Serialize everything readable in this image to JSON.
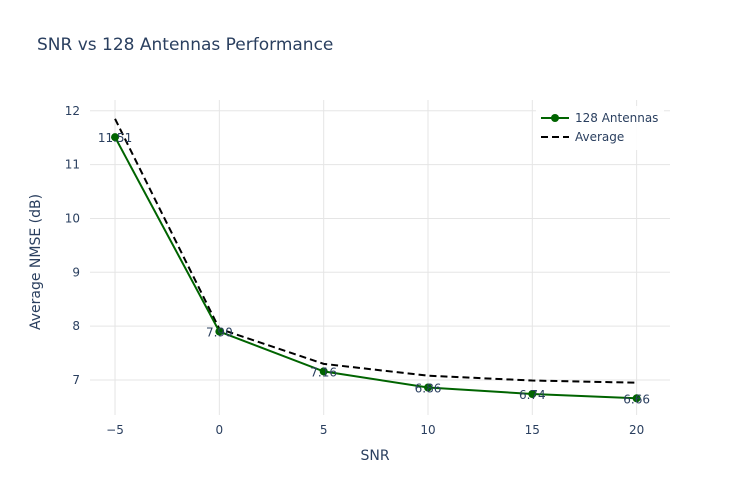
{
  "chart_data": {
    "type": "line",
    "title": "SNR vs 128 Antennas Performance",
    "xlabel": "SNR",
    "ylabel": "Average NMSE (dB)",
    "xlim": [
      -6.2,
      21.6
    ],
    "ylim": [
      6.35,
      12.2
    ],
    "x_ticks": [
      -5,
      0,
      5,
      10,
      15,
      20
    ],
    "x_tick_labels": [
      "−5",
      "0",
      "5",
      "10",
      "15",
      "20"
    ],
    "y_ticks": [
      7,
      8,
      9,
      10,
      11,
      12
    ],
    "y_tick_labels": [
      "7",
      "8",
      "9",
      "10",
      "11",
      "12"
    ],
    "grid": true,
    "legend_position": "top-right",
    "series": [
      {
        "name": "128 Antennas",
        "style": "solid-with-markers",
        "color": "#006400",
        "x": [
          -5,
          0,
          5,
          10,
          15,
          20
        ],
        "y": [
          11.51,
          7.9,
          7.16,
          6.86,
          6.74,
          6.66
        ],
        "labels": [
          "11.51",
          "7.90",
          "7.16",
          "6.86",
          "6.74",
          "6.66"
        ]
      },
      {
        "name": "Average",
        "style": "dashed",
        "color": "#000000",
        "x": [
          -5,
          0,
          5,
          10,
          15,
          20
        ],
        "y": [
          11.85,
          7.95,
          7.3,
          7.08,
          6.99,
          6.95
        ]
      }
    ]
  }
}
